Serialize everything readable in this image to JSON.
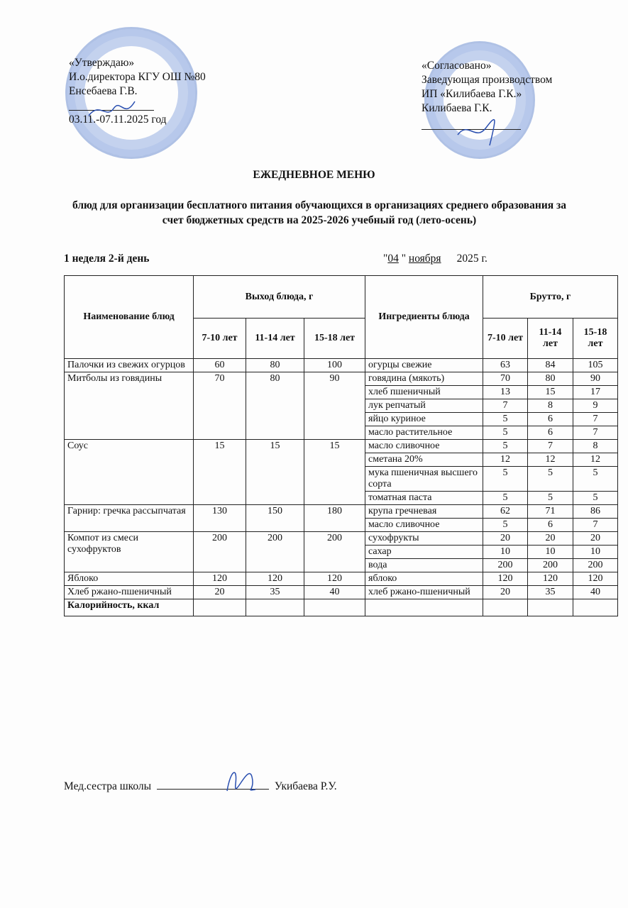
{
  "approved": {
    "lines": [
      "«Утверждаю»",
      "И.о.директора КГУ ОШ №80",
      "Енсебаева Г.В.",
      "03.11.-07.11.2025 год"
    ]
  },
  "agreed": {
    "lines": [
      "«Согласовано»",
      "Заведующая производством",
      "ИП «Килибаева Г.К.»",
      "Килибаева Г.К."
    ]
  },
  "title": "ЕЖЕДНЕВНОЕ МЕНЮ",
  "subtitle": "блюд для организации бесплатного питания обучающихся в организациях среднего образования за счет бюджетных средств на 2025-2026 учебный год (лето-осень)",
  "week_day": "1 неделя 2-й день",
  "date": {
    "open": "\"",
    "day": "04",
    "mid": " \" ",
    "month": "ноября",
    "year": "2025 г."
  },
  "table": {
    "headers": {
      "name": "Наименование блюд",
      "output": "Выход блюда, г",
      "ingredients": "Ингредиенты блюда",
      "gross": "Брутто, г",
      "ages": [
        "7-10 лет",
        "11-14 лет",
        "15-18 лет"
      ]
    },
    "dishes": [
      {
        "name": "Палочки из свежих огурцов",
        "out": [
          "60",
          "80",
          "100"
        ],
        "ing": [
          {
            "name": "огурцы свежие",
            "g": [
              "63",
              "84",
              "105"
            ]
          }
        ]
      },
      {
        "name": "Митболы из говядины",
        "out": [
          "70",
          "80",
          "90"
        ],
        "ing": [
          {
            "name": "говядина (мякоть)",
            "g": [
              "70",
              "80",
              "90"
            ]
          },
          {
            "name": "хлеб пшеничный",
            "g": [
              "13",
              "15",
              "17"
            ]
          },
          {
            "name": "лук репчатый",
            "g": [
              "7",
              "8",
              "9"
            ]
          },
          {
            "name": "яйцо куриное",
            "g": [
              "5",
              "6",
              "7"
            ]
          },
          {
            "name": "масло растительное",
            "g": [
              "5",
              "6",
              "7"
            ]
          }
        ]
      },
      {
        "name": "Соус",
        "out": [
          "15",
          "15",
          "15"
        ],
        "ing": [
          {
            "name": "масло сливочное",
            "g": [
              "5",
              "7",
              "8"
            ]
          },
          {
            "name": "сметана 20%",
            "g": [
              "12",
              "12",
              "12"
            ]
          },
          {
            "name": "мука пшеничная высшего сорта",
            "g": [
              "5",
              "5",
              "5"
            ]
          },
          {
            "name": "томатная паста",
            "g": [
              "5",
              "5",
              "5"
            ]
          }
        ]
      },
      {
        "name": "Гарнир: гречка рассыпчатая",
        "out": [
          "130",
          "150",
          "180"
        ],
        "ing": [
          {
            "name": "крупа гречневая",
            "g": [
              "62",
              "71",
              "86"
            ]
          },
          {
            "name": "масло сливочное",
            "g": [
              "5",
              "6",
              "7"
            ]
          }
        ]
      },
      {
        "name": "Компот из смеси сухофруктов",
        "out": [
          "200",
          "200",
          "200"
        ],
        "ing": [
          {
            "name": "сухофрукты",
            "g": [
              "20",
              "20",
              "20"
            ]
          },
          {
            "name": "сахар",
            "g": [
              "10",
              "10",
              "10"
            ]
          },
          {
            "name": "вода",
            "g": [
              "200",
              "200",
              "200"
            ]
          }
        ]
      },
      {
        "name": "Яблоко",
        "out": [
          "120",
          "120",
          "120"
        ],
        "ing": [
          {
            "name": "яблоко",
            "g": [
              "120",
              "120",
              "120"
            ]
          }
        ]
      },
      {
        "name": "Хлеб ржано-пшеничный",
        "out": [
          "20",
          "35",
          "40"
        ],
        "ing": [
          {
            "name": "хлеб ржано-пшеничный",
            "g": [
              "20",
              "35",
              "40"
            ]
          }
        ]
      }
    ],
    "calories_label": "Калорийность, ккал"
  },
  "nurse": {
    "label": "Мед.сестра школы",
    "name": "Укибаева Р.У."
  },
  "colors": {
    "stamp": "#4a78c8",
    "ink": "#111111"
  }
}
